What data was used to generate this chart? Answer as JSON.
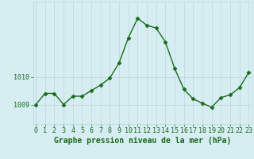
{
  "x": [
    0,
    1,
    2,
    3,
    4,
    5,
    6,
    7,
    8,
    9,
    10,
    11,
    12,
    13,
    14,
    15,
    16,
    17,
    18,
    19,
    20,
    21,
    22,
    23
  ],
  "y": [
    1009.0,
    1009.4,
    1009.4,
    1009.0,
    1009.3,
    1009.3,
    1009.5,
    1009.7,
    1009.95,
    1010.5,
    1011.4,
    1012.1,
    1011.85,
    1011.75,
    1011.25,
    1010.3,
    1009.55,
    1009.2,
    1009.05,
    1008.9,
    1009.25,
    1009.35,
    1009.6,
    1010.15
  ],
  "line_color": "#1a6b1a",
  "marker": "D",
  "marker_size": 2.5,
  "background_color": "#d6eef2",
  "grid_color": "#b8d8e0",
  "xlabel": "Graphe pression niveau de la mer (hPa)",
  "yticks": [
    1009,
    1010
  ],
  "ylim": [
    1008.3,
    1012.7
  ],
  "xlim": [
    -0.3,
    23.3
  ],
  "xtick_labels": [
    "0",
    "1",
    "2",
    "3",
    "4",
    "5",
    "6",
    "7",
    "8",
    "9",
    "10",
    "11",
    "12",
    "13",
    "14",
    "15",
    "16",
    "17",
    "18",
    "19",
    "20",
    "21",
    "22",
    "23"
  ],
  "xlabel_fontsize": 7,
  "tick_fontsize": 6,
  "line_width": 1.0
}
